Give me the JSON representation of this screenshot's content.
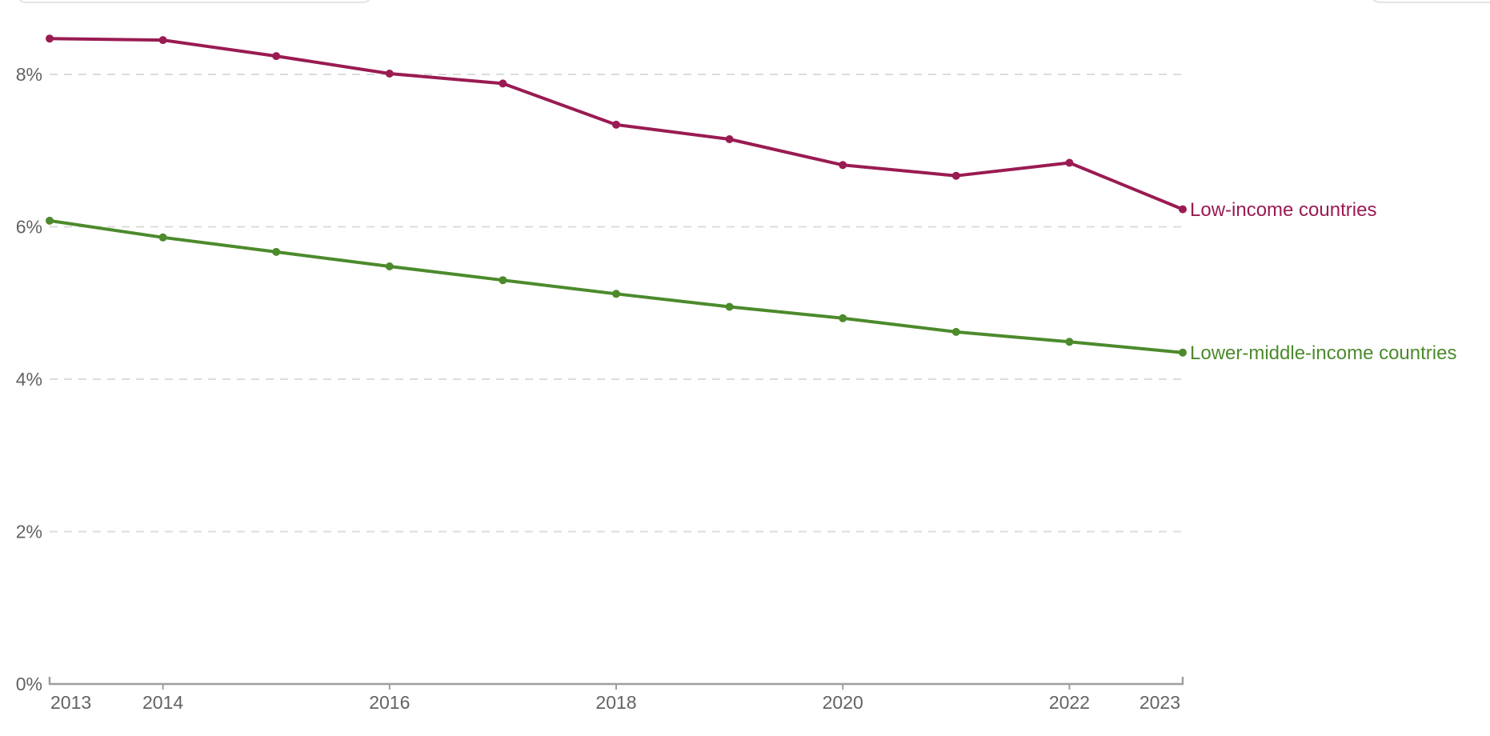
{
  "chart_data": {
    "type": "line",
    "x": [
      2013,
      2014,
      2015,
      2016,
      2017,
      2018,
      2019,
      2020,
      2021,
      2022,
      2023
    ],
    "series": [
      {
        "name": "Low-income countries",
        "color": "#9a1b52",
        "values": [
          8.47,
          8.45,
          8.24,
          8.01,
          7.88,
          7.34,
          7.15,
          6.81,
          6.67,
          6.84,
          6.23
        ]
      },
      {
        "name": "Lower-middle-income countries",
        "color": "#4c8a2c",
        "values": [
          6.08,
          5.86,
          5.67,
          5.48,
          5.3,
          5.12,
          4.95,
          4.8,
          4.62,
          4.49,
          4.35
        ]
      }
    ],
    "axis_unit": "%",
    "ylim": [
      0,
      8.8
    ],
    "yticks": [
      {
        "value": 0,
        "label": "0%"
      },
      {
        "value": 2,
        "label": "2%"
      },
      {
        "value": 4,
        "label": "4%"
      },
      {
        "value": 6,
        "label": "6%"
      },
      {
        "value": 8,
        "label": "8%"
      }
    ],
    "xticks": [
      {
        "year": 2013,
        "label": "2013",
        "align": "start",
        "cap": true
      },
      {
        "year": 2014,
        "label": "2014",
        "align": "middle",
        "cap": false
      },
      {
        "year": 2016,
        "label": "2016",
        "align": "middle",
        "cap": false
      },
      {
        "year": 2018,
        "label": "2018",
        "align": "middle",
        "cap": false
      },
      {
        "year": 2020,
        "label": "2020",
        "align": "middle",
        "cap": false
      },
      {
        "year": 2022,
        "label": "2022",
        "align": "middle",
        "cap": false
      },
      {
        "year": 2023,
        "label": "2023",
        "align": "end",
        "cap": true
      }
    ],
    "grid": {
      "horizontal": true,
      "style": "dashed"
    },
    "legend": {
      "position": "end-of-line-labels"
    },
    "style": {
      "grid_color": "#dcdcdc",
      "axis_color": "#9e9e9e",
      "tick_text_color": "#636363"
    }
  }
}
